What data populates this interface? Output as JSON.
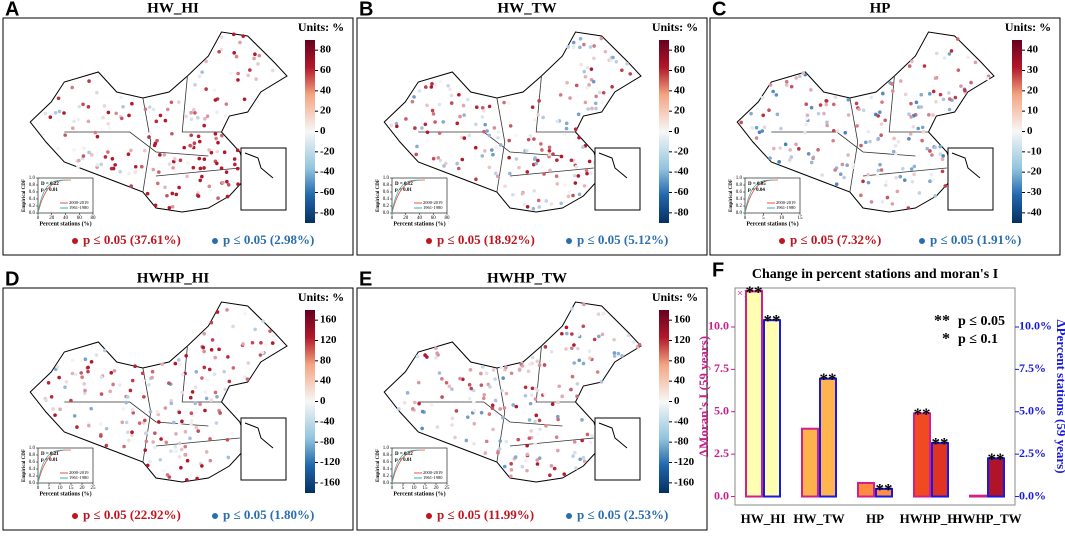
{
  "panels": [
    {
      "letter": "A",
      "title": "HW_HI",
      "units": "Units: %",
      "colorbar": {
        "lim": [
          -90,
          90
        ],
        "ticks": [
          80,
          60,
          40,
          20,
          0,
          -20,
          -40,
          -60,
          -80
        ]
      },
      "inset": {
        "stat": "D = 0.22",
        "p": "p < 0.01",
        "legend": [
          "2000-2019",
          "1961-1980"
        ],
        "xlabel": "Percent stations (%)",
        "ylabel": "Empirical CDF",
        "xticks": [
          0,
          20,
          40,
          60,
          80
        ]
      },
      "sig_pos": "p ≤ 0.05 (37.61%)",
      "sig_neg": "p ≤ 0.05 (2.98%)"
    },
    {
      "letter": "B",
      "title": "HW_TW",
      "units": "Units: %",
      "colorbar": {
        "lim": [
          -90,
          90
        ],
        "ticks": [
          80,
          60,
          40,
          20,
          0,
          -20,
          -40,
          -60,
          -80
        ]
      },
      "inset": {
        "stat": "D = 0.12",
        "p": "p < 0.01",
        "legend": [
          "2000-2019",
          "1961-1980"
        ],
        "xlabel": "Percent stations (%)",
        "ylabel": "Empirical CDF",
        "xticks": [
          0,
          20,
          40,
          60,
          80
        ]
      },
      "sig_pos": "p ≤ 0.05 (18.92%)",
      "sig_neg": "p ≤ 0.05 (5.12%)"
    },
    {
      "letter": "C",
      "title": "HP",
      "units": "Units: %",
      "colorbar": {
        "lim": [
          -45,
          45
        ],
        "ticks": [
          40,
          30,
          20,
          10,
          0,
          -10,
          -20,
          -30,
          -40
        ]
      },
      "inset": {
        "stat": "D = 0.05",
        "p": "p = 0.04",
        "legend": [
          "2000-2019",
          "1961-1980"
        ],
        "xlabel": "Percent stations (%)",
        "ylabel": "Empirical CDF",
        "xticks": [
          0,
          5,
          10,
          15
        ]
      },
      "sig_pos": "p ≤ 0.05 (7.32%)",
      "sig_neg": "p ≤ 0.05 (1.91%)"
    },
    {
      "letter": "D",
      "title": "HWHP_HI",
      "units": "Units: %",
      "colorbar": {
        "lim": [
          -180,
          180
        ],
        "ticks": [
          160,
          120,
          80,
          40,
          0,
          -40,
          -80,
          -120,
          -160
        ]
      },
      "inset": {
        "stat": "D = 0.21",
        "p": "p < 0.01",
        "legend": [
          "2000-2019",
          "1961-1980"
        ],
        "xlabel": "Percent stations (%)",
        "ylabel": "Empirical CDF",
        "xticks": [
          0,
          5,
          10,
          15,
          20,
          25
        ]
      },
      "sig_pos": "p ≤ 0.05 (22.92%)",
      "sig_neg": "p ≤ 0.05 (1.80%)"
    },
    {
      "letter": "E",
      "title": "HWHP_TW",
      "units": "Units: %",
      "colorbar": {
        "lim": [
          -180,
          180
        ],
        "ticks": [
          160,
          120,
          80,
          40,
          0,
          -40,
          -80,
          -120,
          -160
        ]
      },
      "inset": {
        "stat": "D = 0.12",
        "p": "p < 0.01",
        "legend": [
          "2000-2019",
          "1961-1980"
        ],
        "xlabel": "Percent stations (%)",
        "ylabel": "Empirical CDF",
        "xticks": [
          0,
          5,
          10,
          15,
          20,
          25
        ]
      },
      "sig_pos": "p ≤ 0.05 (11.99%)",
      "sig_neg": "p ≤ 0.05 (2.53%)"
    }
  ],
  "inset_yticks": [
    {
      "value": 0,
      "label": "0.0"
    },
    {
      "value": 0.2,
      "label": "0.2"
    },
    {
      "value": 0.4,
      "label": "0.4"
    },
    {
      "value": 0.6,
      "label": "0.6"
    },
    {
      "value": 0.8,
      "label": "0.8"
    },
    {
      "value": 1,
      "label": "1.0"
    }
  ],
  "chart_data": {
    "type": "bar",
    "letter": "F",
    "title": "Change in percent stations and moran's I",
    "categories": [
      "HW_HI",
      "HW_TW",
      "HP",
      "HWHP_HI",
      "HWHP_TW"
    ],
    "ylabel": "ΔMoran's I (59 years)",
    "ylabel_multiplier": "×10⁻²",
    "y2label": "ΔPercent stations (59 years)",
    "series": [
      {
        "name": "ΔMoran's I (59 years)",
        "color": [
          "#ffffb2",
          "#fdb24c",
          "#fc8a3f",
          "#f04a22",
          "#c8102e"
        ],
        "edge": "#d0208c",
        "values": [
          12.1,
          4.0,
          0.8,
          4.9,
          0.05
        ],
        "stars": [
          "**",
          null,
          null,
          "**",
          null
        ]
      },
      {
        "name": "ΔPercent stations (59 years)",
        "axis": "y2",
        "color": [
          "#ffffb2",
          "#ffb450",
          "#ff8f4a",
          "#e03322",
          "#b0142a"
        ],
        "edge": "#1a1adc",
        "values": [
          10.4,
          6.95,
          0.45,
          3.15,
          2.25
        ],
        "stars": [
          "**",
          "**",
          "**",
          "**",
          "**"
        ]
      }
    ],
    "ylim": [
      -0.5,
      12.3
    ],
    "yticks": [
      {
        "value": 0,
        "label": "0.0"
      },
      {
        "value": 2.5,
        "label": "2.5"
      },
      {
        "value": 5,
        "label": "5.0"
      },
      {
        "value": 7.5,
        "label": "7.5"
      },
      {
        "value": 10,
        "label": "10.0"
      }
    ],
    "y2lim": [
      -0.5,
      12.3
    ],
    "y2ticks": [
      {
        "value": 0,
        "label": "0.0%"
      },
      {
        "value": 2.5,
        "label": "2.5%"
      },
      {
        "value": 5,
        "label": "5.0%"
      },
      {
        "value": 7.5,
        "label": "7.5%"
      },
      {
        "value": 10,
        "label": "10.0%"
      }
    ],
    "legend": [
      {
        "stars": "**",
        "text": "p ≤ 0.05"
      },
      {
        "stars": "*",
        "text": "p ≤ 0.1"
      }
    ]
  }
}
